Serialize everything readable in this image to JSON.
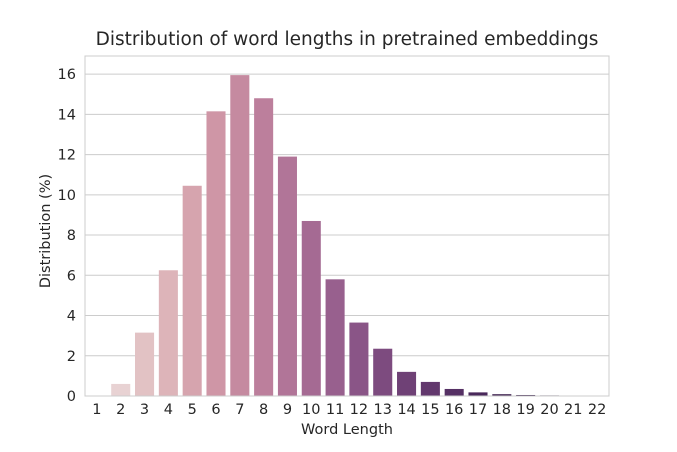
{
  "chart_data": {
    "type": "bar",
    "title": "Distribution of word lengths in pretrained embeddings",
    "xlabel": "Word Length",
    "ylabel": "Distribution (%)",
    "categories": [
      "1",
      "2",
      "3",
      "4",
      "5",
      "6",
      "7",
      "8",
      "9",
      "10",
      "11",
      "12",
      "13",
      "14",
      "15",
      "16",
      "17",
      "18",
      "19",
      "20",
      "21",
      "22"
    ],
    "values": [
      0.02,
      0.6,
      3.15,
      6.25,
      10.45,
      14.15,
      15.95,
      14.8,
      11.9,
      8.7,
      5.8,
      3.65,
      2.35,
      1.2,
      0.7,
      0.35,
      0.18,
      0.09,
      0.05,
      0.03,
      0.02,
      0.01
    ],
    "ylim": [
      0,
      16.9
    ],
    "yticks": [
      0,
      2,
      4,
      6,
      8,
      10,
      12,
      14,
      16
    ],
    "grid": true,
    "colors": [
      "#eadcdc",
      "#e8d2d3",
      "#e2c2c4",
      "#ddb4b9",
      "#d6a4ae",
      "#cf96a6",
      "#c58aa0",
      "#bc7f9c",
      "#b17598",
      "#a56a93",
      "#98608e",
      "#8a5587",
      "#7d4b7f",
      "#6f4176",
      "#62386d",
      "#553064",
      "#49285a",
      "#3f2250",
      "#361d48",
      "#2f1941",
      "#2a163a",
      "#251335"
    ]
  }
}
